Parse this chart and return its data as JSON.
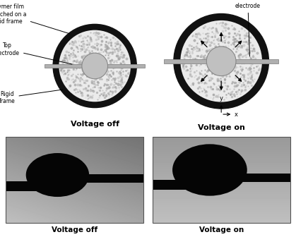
{
  "fig_width": 4.19,
  "fig_height": 3.36,
  "dpi": 100,
  "bg_color": "#ffffff",
  "labels": {
    "polymer_film": "Polymer film\nstretched on a\nrigid frame",
    "top_electrode": "Top\nelectrode",
    "bottom_electrode": "Bottom\nelectrode",
    "rigid_frame": "Rigid\nframe",
    "voltage_off_title": "Voltage off",
    "voltage_on_title": "Voltage on",
    "voltage_off_photo": "Voltage off",
    "voltage_on_photo": "Voltage on",
    "x_axis": "x",
    "y_axis": "y"
  },
  "outer_ring_color": "#111111",
  "inner_film_color": "#ebebeb",
  "electrode_color": "#c0c0c0",
  "bar_color": "#b0b0b0",
  "bar_edge_color": "#888888",
  "speckle_color_min": 0.6,
  "speckle_color_max": 0.8,
  "n_speckle": 600,
  "photo_left_bg_top": "#aaaaaa",
  "photo_left_bg_bot": "#888888",
  "photo_right_bg_top": "#b0b0b0",
  "photo_right_bg_bot": "#999999"
}
